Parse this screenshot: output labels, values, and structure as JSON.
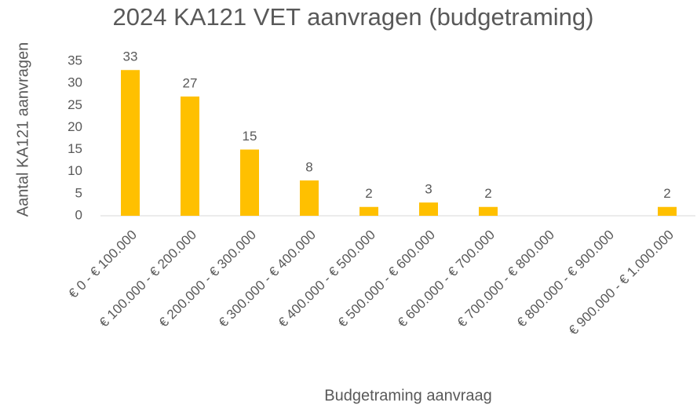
{
  "chart_data": {
    "type": "bar",
    "title": "2024 KA121 VET aanvragen (budgetraming)",
    "x_label": "Budgetraming aanvraag",
    "y_label": "Aantal KA121 aanvragen",
    "categories": [
      "€ 0 - € 100.000",
      "€ 100.000 - € 200.000",
      "€ 200.000 - € 300.000",
      "€ 300.000 - € 400.000",
      "€ 400.000 - € 500.000",
      "€ 500.000 - € 600.000",
      "€ 600.000 - € 700.000",
      "€ 700.000 - € 800.000",
      "€ 800.000 - € 900.000",
      "€ 900.000 - € 1.000.000"
    ],
    "values": [
      33,
      27,
      15,
      8,
      2,
      3,
      2,
      null,
      null,
      2
    ],
    "color": "#ffc000",
    "ylim": [
      0,
      35
    ],
    "yticks": [
      0,
      5,
      10,
      15,
      20,
      25,
      30,
      35
    ],
    "grid": false
  }
}
